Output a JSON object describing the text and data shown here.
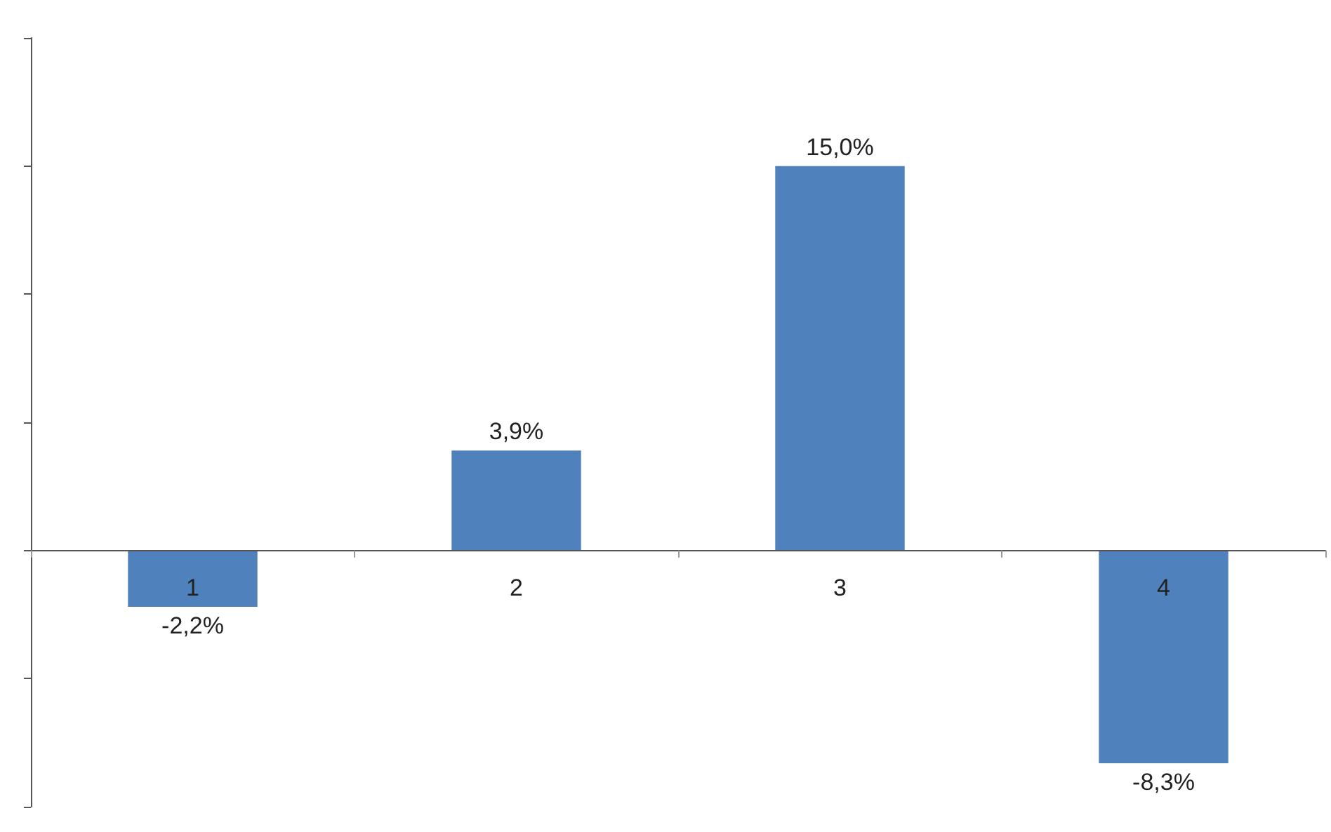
{
  "chart_data": {
    "type": "bar",
    "categories": [
      "1",
      "2",
      "3",
      "4"
    ],
    "values": [
      -2.2,
      3.9,
      15.0,
      -8.3
    ],
    "value_labels": [
      "-2,2%",
      "3,9%",
      "15,0%",
      "-8,3%"
    ],
    "color": "#4f81bd",
    "ylim": [
      -10,
      20
    ],
    "yticks": [
      {
        "value": -10,
        "label": null
      },
      {
        "value": -5,
        "label": null
      },
      {
        "value": 0,
        "label": null
      },
      {
        "value": 5,
        "label": null
      },
      {
        "value": 10,
        "label": null
      },
      {
        "value": 15,
        "label": null
      },
      {
        "value": 20,
        "label": null
      }
    ],
    "tick_labels": "x",
    "grid": false
  }
}
